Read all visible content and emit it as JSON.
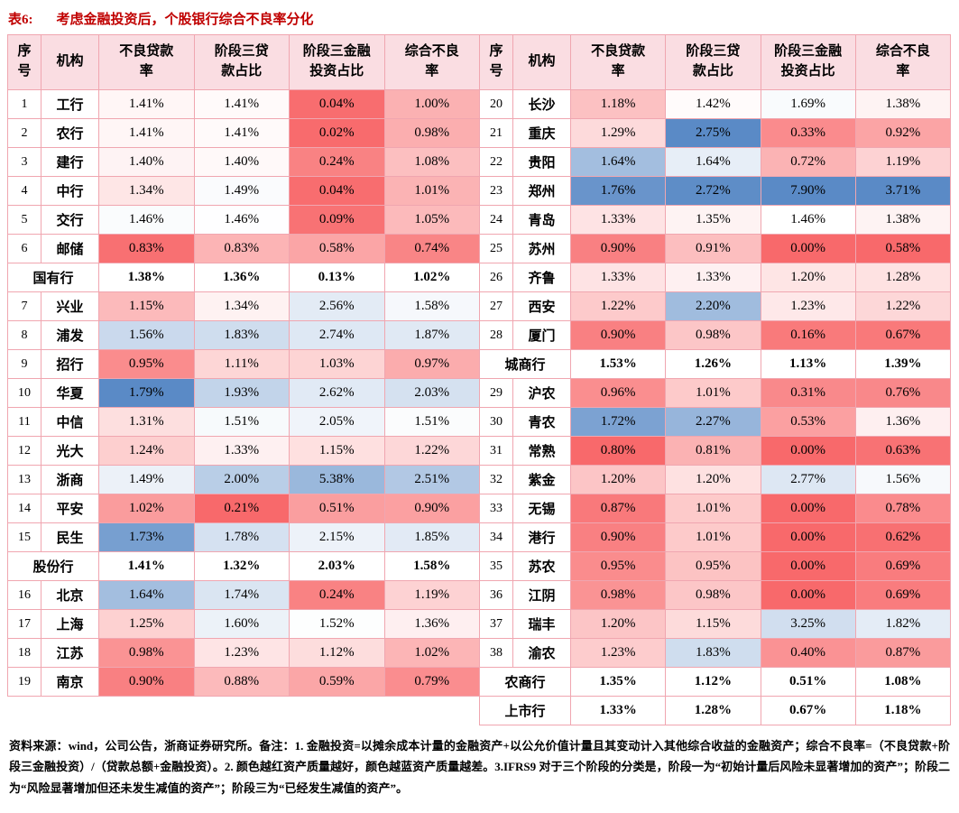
{
  "title": {
    "tag": "表6:",
    "text": "考虑金融投资后，个股银行综合不良率分化"
  },
  "colors": {
    "title_red": "#c00000",
    "header_bg": "#fadde2",
    "grid_border": "#f0a6b0"
  },
  "chart_data": {
    "type": "table",
    "heatmap": true,
    "title": "表6: 考虑金融投资后，个股银行综合不良率分化",
    "unit": "%",
    "columns": [
      "序号",
      "机构",
      "不良贷款率",
      "阶段三贷款占比",
      "阶段三金融投资占比",
      "综合不良率"
    ],
    "header_display": [
      "序\n号",
      "机构",
      "不良贷款\n率",
      "阶段三贷\n款占比",
      "阶段三金融\n投资占比",
      "综合不良\n率"
    ],
    "color_scale": {
      "low": "#f8696b",
      "mid": "#ffffff",
      "high": "#5a8ac6",
      "midpoint_value": 1.45,
      "meaning": "红=不良率低(资产质量好) 蓝=不良率高(资产质量差)"
    },
    "left_row_count": 21,
    "rows": [
      [
        "1",
        "工行",
        "1.41%",
        "1.41%",
        "0.04%",
        "1.00%"
      ],
      [
        "2",
        "农行",
        "1.41%",
        "1.41%",
        "0.02%",
        "0.98%"
      ],
      [
        "3",
        "建行",
        "1.40%",
        "1.40%",
        "0.24%",
        "1.08%"
      ],
      [
        "4",
        "中行",
        "1.34%",
        "1.49%",
        "0.04%",
        "1.01%"
      ],
      [
        "5",
        "交行",
        "1.46%",
        "1.46%",
        "0.09%",
        "1.05%"
      ],
      [
        "6",
        "邮储",
        "0.83%",
        "0.83%",
        "0.58%",
        "0.74%"
      ],
      [
        "",
        "国有行",
        "1.38%",
        "1.36%",
        "0.13%",
        "1.02%"
      ],
      [
        "7",
        "兴业",
        "1.15%",
        "1.34%",
        "2.56%",
        "1.58%"
      ],
      [
        "8",
        "浦发",
        "1.56%",
        "1.83%",
        "2.74%",
        "1.87%"
      ],
      [
        "9",
        "招行",
        "0.95%",
        "1.11%",
        "1.03%",
        "0.97%"
      ],
      [
        "10",
        "华夏",
        "1.79%",
        "1.93%",
        "2.62%",
        "2.03%"
      ],
      [
        "11",
        "中信",
        "1.31%",
        "1.51%",
        "2.05%",
        "1.51%"
      ],
      [
        "12",
        "光大",
        "1.24%",
        "1.33%",
        "1.15%",
        "1.22%"
      ],
      [
        "13",
        "浙商",
        "1.49%",
        "2.00%",
        "5.38%",
        "2.51%"
      ],
      [
        "14",
        "平安",
        "1.02%",
        "0.21%",
        "0.51%",
        "0.90%"
      ],
      [
        "15",
        "民生",
        "1.73%",
        "1.78%",
        "2.15%",
        "1.85%"
      ],
      [
        "",
        "股份行",
        "1.41%",
        "1.32%",
        "2.03%",
        "1.58%"
      ],
      [
        "16",
        "北京",
        "1.64%",
        "1.74%",
        "0.24%",
        "1.19%"
      ],
      [
        "17",
        "上海",
        "1.25%",
        "1.60%",
        "1.52%",
        "1.36%"
      ],
      [
        "18",
        "江苏",
        "0.98%",
        "1.23%",
        "1.12%",
        "1.02%"
      ],
      [
        "19",
        "南京",
        "0.90%",
        "0.88%",
        "0.59%",
        "0.79%"
      ],
      [
        "20",
        "长沙",
        "1.18%",
        "1.42%",
        "1.69%",
        "1.38%"
      ],
      [
        "21",
        "重庆",
        "1.29%",
        "2.75%",
        "0.33%",
        "0.92%"
      ],
      [
        "22",
        "贵阳",
        "1.64%",
        "1.64%",
        "0.72%",
        "1.19%"
      ],
      [
        "23",
        "郑州",
        "1.76%",
        "2.72%",
        "7.90%",
        "3.71%"
      ],
      [
        "24",
        "青岛",
        "1.33%",
        "1.35%",
        "1.46%",
        "1.38%"
      ],
      [
        "25",
        "苏州",
        "0.90%",
        "0.91%",
        "0.00%",
        "0.58%"
      ],
      [
        "26",
        "齐鲁",
        "1.33%",
        "1.33%",
        "1.20%",
        "1.28%"
      ],
      [
        "27",
        "西安",
        "1.22%",
        "2.20%",
        "1.23%",
        "1.22%"
      ],
      [
        "28",
        "厦门",
        "0.90%",
        "0.98%",
        "0.16%",
        "0.67%"
      ],
      [
        "",
        "城商行",
        "1.53%",
        "1.26%",
        "1.13%",
        "1.39%"
      ],
      [
        "29",
        "沪农",
        "0.96%",
        "1.01%",
        "0.31%",
        "0.76%"
      ],
      [
        "30",
        "青农",
        "1.72%",
        "2.27%",
        "0.53%",
        "1.36%"
      ],
      [
        "31",
        "常熟",
        "0.80%",
        "0.81%",
        "0.00%",
        "0.63%"
      ],
      [
        "32",
        "紫金",
        "1.20%",
        "1.20%",
        "2.77%",
        "1.56%"
      ],
      [
        "33",
        "无锡",
        "0.87%",
        "1.01%",
        "0.00%",
        "0.78%"
      ],
      [
        "34",
        "港行",
        "0.90%",
        "1.01%",
        "0.00%",
        "0.62%"
      ],
      [
        "35",
        "苏农",
        "0.95%",
        "0.95%",
        "0.00%",
        "0.69%"
      ],
      [
        "36",
        "江阴",
        "0.98%",
        "0.98%",
        "0.00%",
        "0.69%"
      ],
      [
        "37",
        "瑞丰",
        "1.20%",
        "1.15%",
        "3.25%",
        "1.82%"
      ],
      [
        "38",
        "渝农",
        "1.23%",
        "1.83%",
        "0.40%",
        "0.87%"
      ],
      [
        "",
        "农商行",
        "1.35%",
        "1.12%",
        "0.51%",
        "1.08%"
      ],
      [
        "",
        "上市行",
        "1.33%",
        "1.28%",
        "0.67%",
        "1.18%"
      ]
    ]
  },
  "footnote": "资料来源：wind，公司公告，浙商证券研究所。备注：1. 金融投资=以摊余成本计量的金融资产+以公允价值计量且其变动计入其他综合收益的金融资产；综合不良率=（不良贷款+阶段三金融投资）/（贷款总额+金融投资）。2. 颜色越红资产质量越好，颜色越蓝资产质量越差。3.IFRS9 对于三个阶段的分类是，阶段一为“初始计量后风险未显著增加的资产”；阶段二为“风险显著增加但还未发生减值的资产”；阶段三为“已经发生减值的资产”。"
}
